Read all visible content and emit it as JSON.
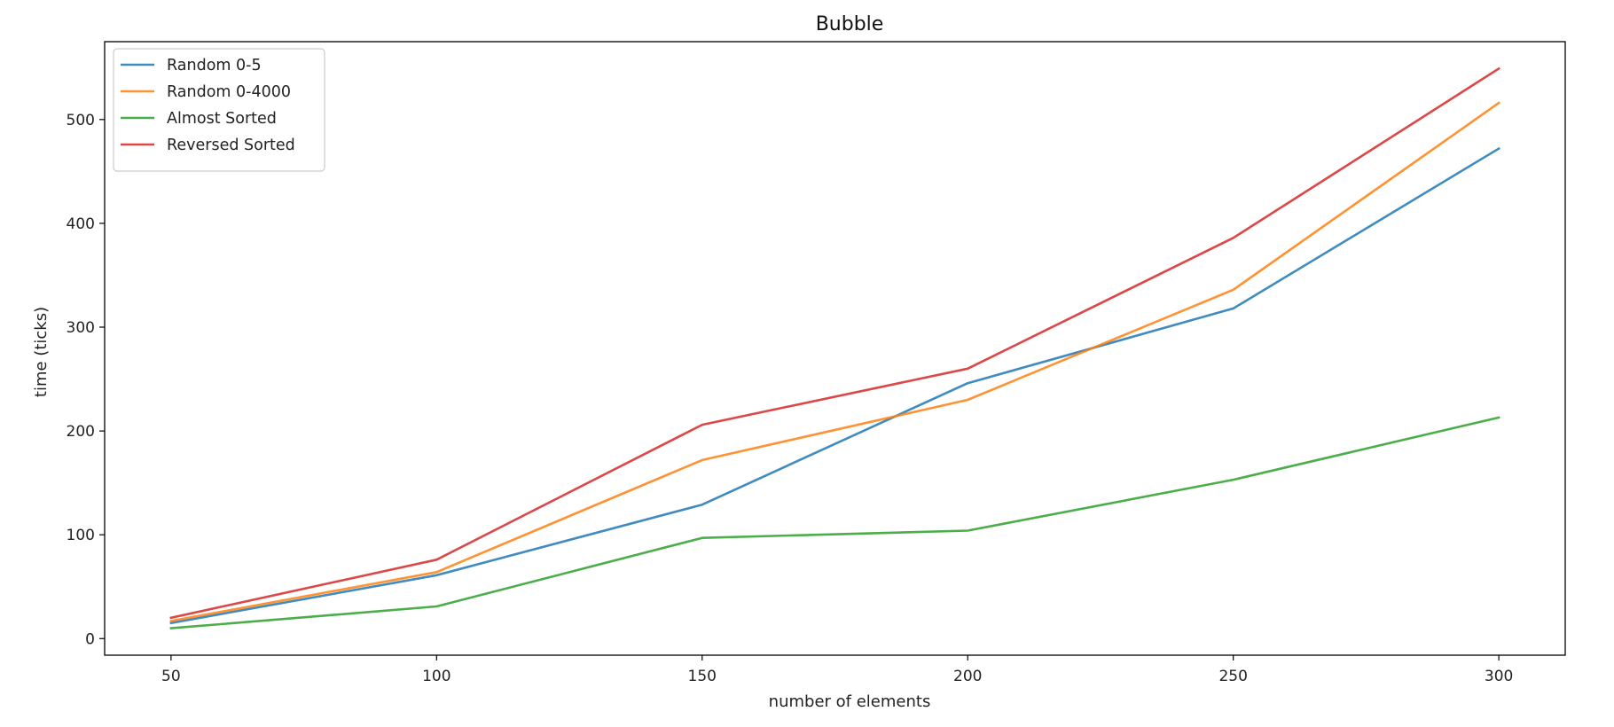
{
  "chart_data": {
    "type": "line",
    "title": "Bubble",
    "xlabel": "number of elements",
    "ylabel": "time (ticks)",
    "x": [
      50,
      100,
      150,
      200,
      250,
      300
    ],
    "xlim": [
      37.5,
      312.5
    ],
    "ylim": [
      -16,
      575
    ],
    "xticks": [
      50,
      100,
      150,
      200,
      250,
      300
    ],
    "yticks": [
      0,
      100,
      200,
      300,
      400,
      500
    ],
    "grid": false,
    "legend_position": "top-left",
    "series": [
      {
        "name": "Random 0-5",
        "color": "#1f77b4",
        "values": [
          15,
          61,
          129,
          246,
          318,
          472
        ]
      },
      {
        "name": "Random 0-4000",
        "color": "#ff7f0e",
        "values": [
          17,
          64,
          172,
          230,
          336,
          516
        ]
      },
      {
        "name": "Almost Sorted",
        "color": "#2ca02c",
        "values": [
          10,
          31,
          97,
          104,
          153,
          213
        ]
      },
      {
        "name": "Reversed Sorted",
        "color": "#d62728",
        "values": [
          20,
          76,
          206,
          260,
          386,
          549
        ]
      }
    ]
  }
}
